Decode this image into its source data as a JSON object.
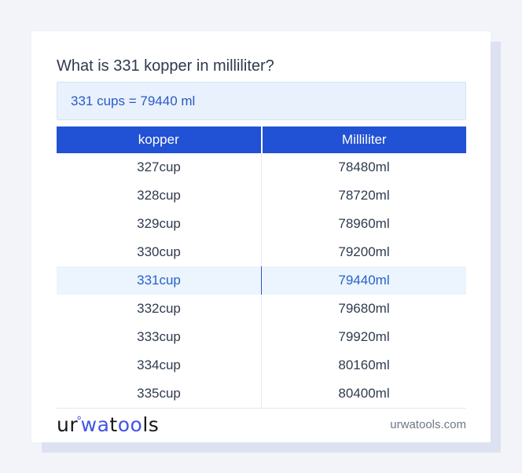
{
  "page": {
    "title": "What is 331 kopper in milliliter?",
    "answer_text": "331 cups = 79440 ml"
  },
  "table": {
    "columns": [
      "kopper",
      "Milliliter"
    ],
    "rows": [
      {
        "kopper": "327cup",
        "milliliter": "78480ml",
        "highlight": false
      },
      {
        "kopper": "328cup",
        "milliliter": "78720ml",
        "highlight": false
      },
      {
        "kopper": "329cup",
        "milliliter": "78960ml",
        "highlight": false
      },
      {
        "kopper": "330cup",
        "milliliter": "79200ml",
        "highlight": false
      },
      {
        "kopper": "331cup",
        "milliliter": "79440ml",
        "highlight": true
      },
      {
        "kopper": "332cup",
        "milliliter": "79680ml",
        "highlight": false
      },
      {
        "kopper": "333cup",
        "milliliter": "79920ml",
        "highlight": false
      },
      {
        "kopper": "334cup",
        "milliliter": "80160ml",
        "highlight": false
      },
      {
        "kopper": "335cup",
        "milliliter": "80400ml",
        "highlight": false
      }
    ]
  },
  "footer": {
    "logo": {
      "part1": "ur",
      "ring": "°",
      "part2": "wa",
      "part3": "t",
      "part4": "oo",
      "part5": "ls"
    },
    "site_url": "urwatools.com"
  },
  "colors": {
    "page_background": "#f2f4fa",
    "card_background": "#ffffff",
    "card_shadow": "#dce2ef",
    "header_blue": "#2151d4",
    "answer_box_background": "#e9f1fc",
    "answer_text_blue": "#2a5ac8",
    "highlight_row_background": "#ecf4fd",
    "highlight_row_text": "#2563c9",
    "body_text": "#2f3b4e",
    "logo_blue": "#4254e8",
    "footer_url_gray": "#6e7787"
  }
}
